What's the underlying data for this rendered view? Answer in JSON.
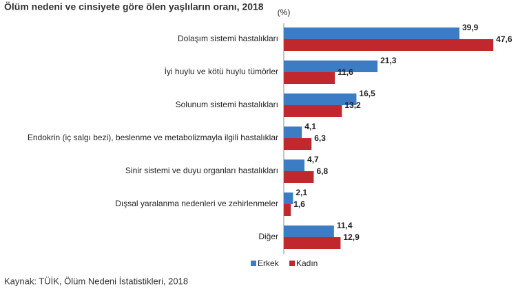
{
  "chart_data": {
    "type": "hbar",
    "title": "Ölüm nedeni ve cinsiyete göre ölen yaşlıların oranı, 2018",
    "unit_label": "(%)",
    "source": "Kaynak: TÜİK, Ölüm Nedeni İstatistikleri, 2018",
    "categories": [
      "Dolaşım sistemi hastalıkları",
      "İyi huylu ve kötü huylu tümörler",
      "Solunum sistemi hastalıkları",
      "Endokrin (iç salgı bezi), beslenme ve metabolizmayla ilgili hastalıklar",
      "Sinir sistemi ve duyu organları hastalıkları",
      "Dışsal yaralanma nedenleri ve zehirlenmeler",
      "Diğer"
    ],
    "series": [
      {
        "name": "Erkek",
        "color": "#3b7cc4",
        "values": [
          39.9,
          21.3,
          16.5,
          4.1,
          4.7,
          2.1,
          11.4
        ],
        "value_labels": [
          "39,9",
          "21,3",
          "16,5",
          "4,1",
          "4,7",
          "2,1",
          "11,4"
        ]
      },
      {
        "name": "Kadın",
        "color": "#c0282d",
        "values": [
          47.6,
          11.6,
          13.2,
          6.3,
          6.8,
          1.6,
          12.9
        ],
        "value_labels": [
          "47,6",
          "11,6",
          "13,2",
          "6,3",
          "6,8",
          "1,6",
          "12,9"
        ]
      }
    ]
  }
}
